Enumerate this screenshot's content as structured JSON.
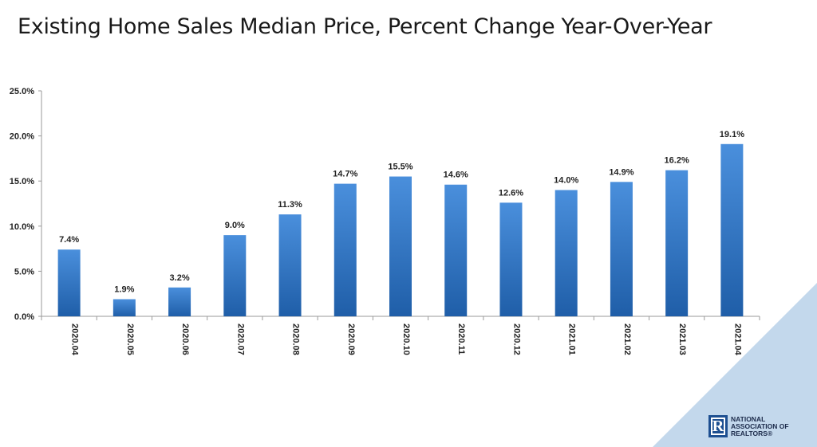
{
  "title": "Existing Home Sales Median Price, Percent Change Year-Over-Year",
  "logo": {
    "mark": "R",
    "lines": [
      "NATIONAL",
      "ASSOCIATION OF",
      "REALTORS®"
    ]
  },
  "colors": {
    "bar_top": "#4a8fdc",
    "bar_bottom": "#1f5ea8",
    "corner_triangle": "#c3d8ec"
  },
  "chart_data": {
    "type": "bar",
    "title": "Existing Home Sales Median Price, Percent Change Year-Over-Year",
    "xlabel": "",
    "ylabel": "",
    "categories": [
      "2020.04",
      "2020.05",
      "2020.06",
      "2020.07",
      "2020.08",
      "2020.09",
      "2020.10",
      "2020.11",
      "2020.12",
      "2021.01",
      "2021.02",
      "2021.03",
      "2021.04"
    ],
    "values": [
      7.4,
      1.9,
      3.2,
      9.0,
      11.3,
      14.7,
      15.5,
      14.6,
      12.6,
      14.0,
      14.9,
      16.2,
      19.1
    ],
    "data_labels": [
      "7.4%",
      "1.9%",
      "3.2%",
      "9.0%",
      "11.3%",
      "14.7%",
      "15.5%",
      "14.6%",
      "12.6%",
      "14.0%",
      "14.9%",
      "16.2%",
      "19.1%"
    ],
    "yticks": [
      0,
      5,
      10,
      15,
      20,
      25
    ],
    "ytick_labels": [
      "0.0%",
      "5.0%",
      "10.0%",
      "15.0%",
      "20.0%",
      "25.0%"
    ],
    "ylim": [
      0,
      25
    ],
    "grid": false,
    "legend": "none"
  }
}
